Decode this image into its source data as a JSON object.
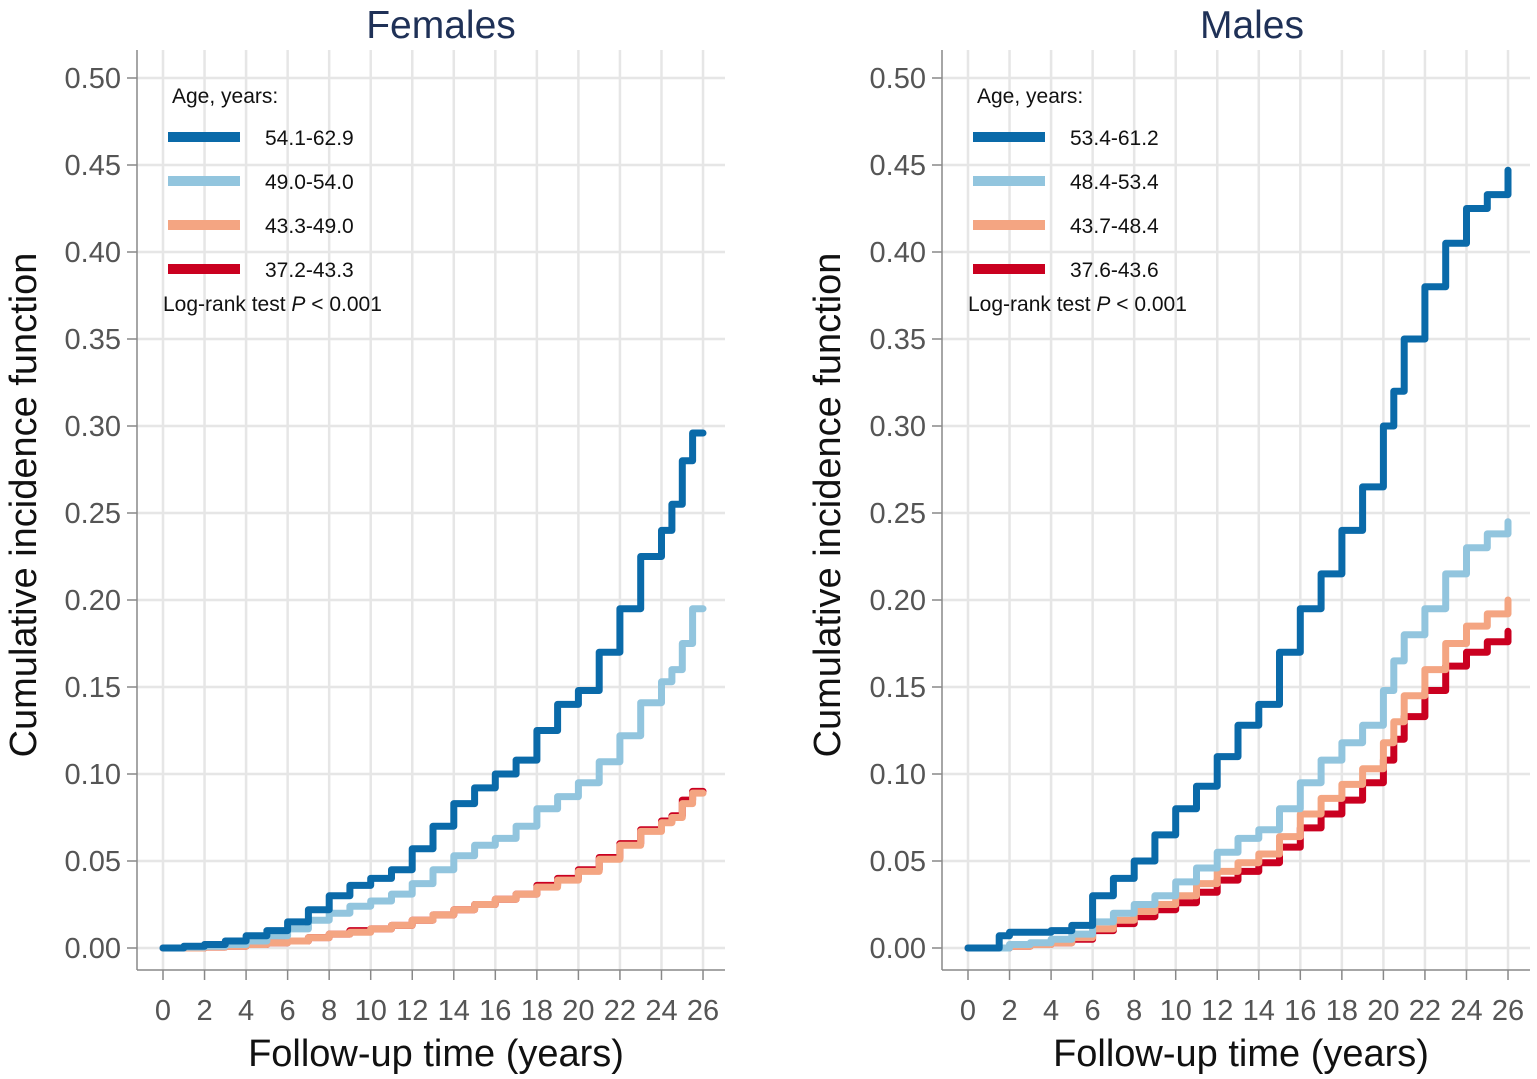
{
  "chart_data": [
    {
      "type": "line",
      "title": "Females",
      "xlabel": "Follow-up time (years)",
      "ylabel": "Cumulative incidence function",
      "xlim": [
        0,
        26
      ],
      "ylim": [
        0,
        0.5
      ],
      "xticks": [
        "0",
        "2",
        "4",
        "6",
        "8",
        "10",
        "12",
        "14",
        "16",
        "18",
        "20",
        "22",
        "24",
        "26"
      ],
      "yticks": [
        "0.00",
        "0.05",
        "0.10",
        "0.15",
        "0.20",
        "0.25",
        "0.30",
        "0.35",
        "0.40",
        "0.45",
        "0.50"
      ],
      "grid": true,
      "legend_title": "Age, years:",
      "legend_placement": "top-left",
      "annotation_prefix": "Log-rank test ",
      "annotation_italic": "P",
      "annotation_suffix": " < 0.001",
      "series": [
        {
          "name": "54.1-62.9",
          "color": "#0a6aa9",
          "x": [
            0,
            1,
            2,
            3,
            4,
            5,
            6,
            7,
            8,
            9,
            10,
            11,
            12,
            13,
            14,
            15,
            16,
            17,
            18,
            19,
            20,
            21,
            22,
            23,
            24,
            24.5,
            25,
            25.5,
            26
          ],
          "y": [
            0,
            0.001,
            0.002,
            0.004,
            0.007,
            0.01,
            0.015,
            0.022,
            0.03,
            0.036,
            0.04,
            0.045,
            0.057,
            0.07,
            0.083,
            0.092,
            0.1,
            0.108,
            0.125,
            0.14,
            0.148,
            0.17,
            0.195,
            0.225,
            0.24,
            0.255,
            0.28,
            0.296,
            0.296
          ]
        },
        {
          "name": "49.0-54.0",
          "color": "#92c5de",
          "x": [
            0,
            1,
            2,
            3,
            4,
            5,
            6,
            7,
            8,
            9,
            10,
            11,
            12,
            13,
            14,
            15,
            16,
            17,
            18,
            19,
            20,
            21,
            22,
            23,
            24,
            24.5,
            25,
            25.5,
            26
          ],
          "y": [
            0,
            0.0005,
            0.001,
            0.002,
            0.004,
            0.007,
            0.011,
            0.016,
            0.02,
            0.024,
            0.027,
            0.031,
            0.037,
            0.045,
            0.053,
            0.059,
            0.063,
            0.07,
            0.08,
            0.087,
            0.095,
            0.107,
            0.122,
            0.141,
            0.153,
            0.16,
            0.175,
            0.195,
            0.195
          ]
        },
        {
          "name": "43.3-49.0",
          "color": "#f4a582",
          "x": [
            0,
            1,
            2,
            3,
            4,
            5,
            6,
            7,
            8,
            9,
            10,
            11,
            12,
            13,
            14,
            15,
            16,
            17,
            18,
            19,
            20,
            21,
            22,
            23,
            24,
            24.5,
            25,
            25.5,
            26
          ],
          "y": [
            0,
            0,
            0.0005,
            0.001,
            0.002,
            0.003,
            0.004,
            0.006,
            0.008,
            0.009,
            0.011,
            0.013,
            0.016,
            0.019,
            0.022,
            0.025,
            0.028,
            0.031,
            0.035,
            0.039,
            0.044,
            0.051,
            0.059,
            0.067,
            0.072,
            0.075,
            0.083,
            0.089,
            0.089
          ]
        },
        {
          "name": "37.2-43.3",
          "color": "#ca0020",
          "x": [
            0,
            1,
            2,
            3,
            4,
            5,
            6,
            7,
            8,
            9,
            10,
            11,
            12,
            13,
            14,
            15,
            16,
            17,
            18,
            19,
            20,
            21,
            22,
            23,
            24,
            24.5,
            25,
            25.5,
            26
          ],
          "y": [
            0,
            0,
            0.0005,
            0.001,
            0.002,
            0.003,
            0.004,
            0.006,
            0.008,
            0.01,
            0.011,
            0.013,
            0.016,
            0.019,
            0.022,
            0.025,
            0.028,
            0.031,
            0.036,
            0.04,
            0.045,
            0.052,
            0.06,
            0.068,
            0.073,
            0.076,
            0.085,
            0.09,
            0.09
          ]
        }
      ]
    },
    {
      "type": "line",
      "title": "Males",
      "xlabel": "Follow-up time (years)",
      "ylabel": "Cumulative incidence function",
      "xlim": [
        0,
        26
      ],
      "ylim": [
        0,
        0.5
      ],
      "xticks": [
        "0",
        "2",
        "4",
        "6",
        "8",
        "10",
        "12",
        "14",
        "16",
        "18",
        "20",
        "22",
        "24",
        "26"
      ],
      "yticks": [
        "0.00",
        "0.05",
        "0.10",
        "0.15",
        "0.20",
        "0.25",
        "0.30",
        "0.35",
        "0.40",
        "0.45",
        "0.50"
      ],
      "grid": true,
      "legend_title": "Age, years:",
      "legend_placement": "top-left",
      "annotation_prefix": "Log-rank test ",
      "annotation_italic": "P",
      "annotation_suffix": " < 0.001",
      "series": [
        {
          "name": "53.4-61.2",
          "color": "#0a6aa9",
          "x": [
            0,
            1,
            1.5,
            2,
            3,
            4,
            5,
            6,
            7,
            8,
            9,
            10,
            11,
            12,
            13,
            14,
            15,
            16,
            17,
            18,
            19,
            20,
            20.5,
            21,
            22,
            23,
            24,
            25,
            25.5,
            26
          ],
          "y": [
            0,
            0,
            0.007,
            0.009,
            0.009,
            0.01,
            0.013,
            0.03,
            0.04,
            0.05,
            0.065,
            0.08,
            0.093,
            0.11,
            0.128,
            0.14,
            0.17,
            0.195,
            0.215,
            0.24,
            0.265,
            0.3,
            0.32,
            0.35,
            0.38,
            0.405,
            0.425,
            0.433,
            0.433,
            0.447
          ]
        },
        {
          "name": "48.4-53.4",
          "color": "#92c5de",
          "x": [
            0,
            1,
            2,
            3,
            4,
            5,
            6,
            7,
            8,
            9,
            10,
            11,
            12,
            13,
            14,
            15,
            16,
            17,
            18,
            19,
            20,
            20.5,
            21,
            22,
            23,
            24,
            25,
            25.5,
            26
          ],
          "y": [
            0,
            0,
            0.002,
            0.003,
            0.005,
            0.008,
            0.015,
            0.02,
            0.025,
            0.03,
            0.038,
            0.046,
            0.055,
            0.063,
            0.068,
            0.08,
            0.095,
            0.108,
            0.118,
            0.128,
            0.148,
            0.165,
            0.18,
            0.195,
            0.215,
            0.23,
            0.238,
            0.238,
            0.245
          ]
        },
        {
          "name": "43.7-48.4",
          "color": "#f4a582",
          "x": [
            0,
            1,
            2,
            3,
            4,
            5,
            6,
            7,
            8,
            9,
            10,
            11,
            12,
            13,
            14,
            15,
            16,
            17,
            18,
            19,
            20,
            20.5,
            21,
            22,
            23,
            24,
            25,
            25.5,
            26
          ],
          "y": [
            0,
            0,
            0.001,
            0.002,
            0.003,
            0.006,
            0.011,
            0.016,
            0.021,
            0.025,
            0.03,
            0.037,
            0.044,
            0.049,
            0.054,
            0.064,
            0.077,
            0.086,
            0.094,
            0.103,
            0.118,
            0.13,
            0.145,
            0.16,
            0.175,
            0.185,
            0.192,
            0.192,
            0.2
          ]
        },
        {
          "name": "37.6-43.6",
          "color": "#ca0020",
          "x": [
            0,
            1,
            2,
            3,
            4,
            5,
            6,
            7,
            8,
            9,
            10,
            11,
            12,
            13,
            14,
            15,
            16,
            17,
            18,
            19,
            20,
            20.5,
            21,
            22,
            23,
            24,
            25,
            25.5,
            26
          ],
          "y": [
            0,
            0,
            0.001,
            0.002,
            0.003,
            0.005,
            0.01,
            0.014,
            0.018,
            0.022,
            0.026,
            0.032,
            0.039,
            0.044,
            0.049,
            0.058,
            0.069,
            0.077,
            0.085,
            0.095,
            0.108,
            0.12,
            0.133,
            0.148,
            0.162,
            0.17,
            0.176,
            0.176,
            0.182
          ]
        }
      ]
    }
  ]
}
